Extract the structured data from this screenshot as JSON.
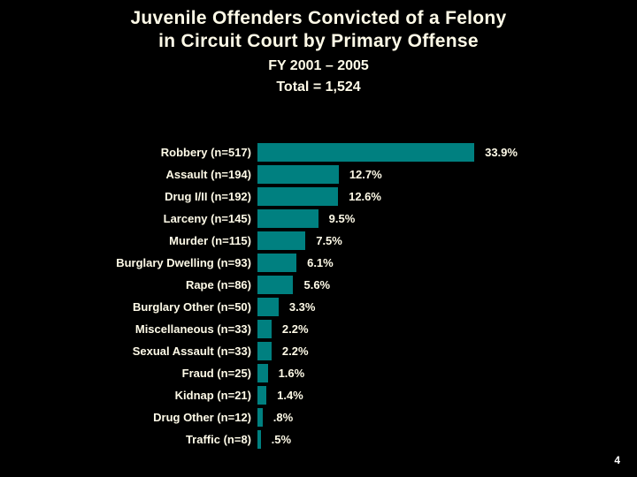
{
  "slide": {
    "title_line1": "Juvenile Offenders Convicted of a Felony",
    "title_line2": "in Circuit Court by Primary Offense",
    "subtitle_line1": "FY 2001 – 2005",
    "subtitle_line2": "Total = 1,524",
    "page_number": "4",
    "colors": {
      "background": "#000000",
      "bar": "#008080",
      "text": "#fffbe8"
    }
  },
  "chart_data": {
    "type": "bar",
    "orientation": "horizontal",
    "title": "Juvenile Offenders Convicted of a Felony in Circuit Court by Primary Offense",
    "subtitle": "FY 2001 – 2005, Total = 1,524",
    "xlabel": "",
    "ylabel": "",
    "grid": false,
    "legend": "none",
    "categories": [
      "Robbery (n=517)",
      "Assault (n=194)",
      "Drug I/II (n=192)",
      "Larceny (n=145)",
      "Murder (n=115)",
      "Burglary Dwelling (n=93)",
      "Rape (n=86)",
      "Burglary Other (n=50)",
      "Miscellaneous (n=33)",
      "Sexual Assault (n=33)",
      "Fraud (n=25)",
      "Kidnap (n=21)",
      "Drug Other (n=12)",
      "Traffic (n=8)"
    ],
    "counts": [
      517,
      194,
      192,
      145,
      115,
      93,
      86,
      50,
      33,
      33,
      25,
      21,
      12,
      8
    ],
    "values": [
      33.9,
      12.7,
      12.6,
      9.5,
      7.5,
      6.1,
      5.6,
      3.3,
      2.2,
      2.2,
      1.6,
      1.4,
      0.8,
      0.5
    ],
    "value_labels": [
      "33.9%",
      "12.7%",
      "12.6%",
      "9.5%",
      "7.5%",
      "6.1%",
      "5.6%",
      "3.3%",
      "2.2%",
      "2.2%",
      "1.6%",
      "1.4%",
      ".8%",
      ".5%"
    ],
    "xlim": [
      0,
      35
    ]
  }
}
